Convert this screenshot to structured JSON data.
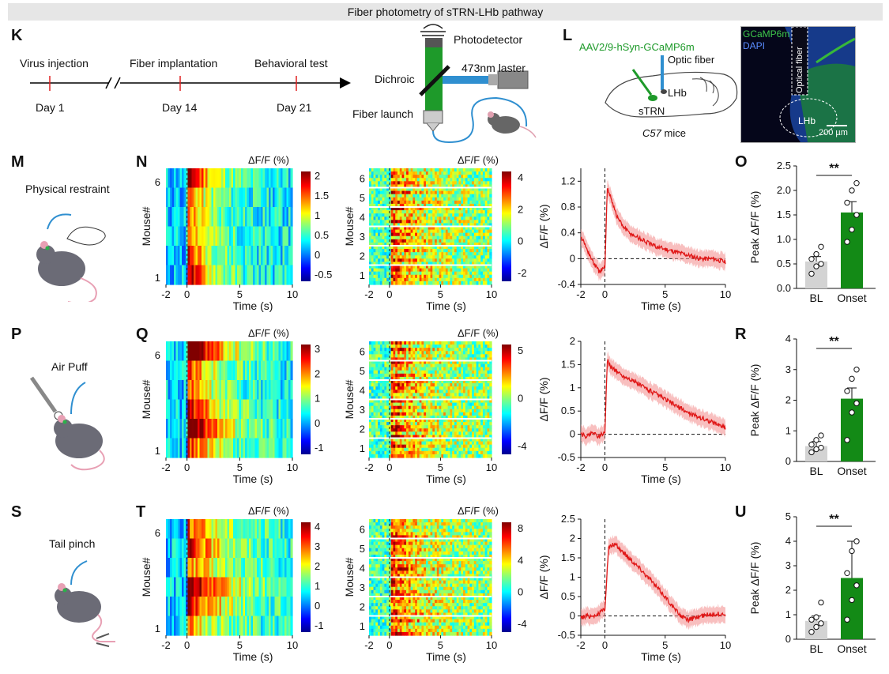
{
  "figure_title": "Fiber photometry of sTRN-LHb pathway",
  "panel_letters": {
    "K": "K",
    "L": "L",
    "M": "M",
    "N": "N",
    "O": "O",
    "P": "P",
    "Q": "Q",
    "R": "R",
    "S": "S",
    "T": "T",
    "U": "U"
  },
  "timeline": {
    "events": [
      {
        "label": "Virus injection",
        "day": "Day 1"
      },
      {
        "label": "Fiber implantation",
        "day": "Day 14"
      },
      {
        "label": "Behavioral test",
        "day": "Day 21"
      }
    ]
  },
  "setup": {
    "photodetector": "Photodetector",
    "laser": "473nm laster",
    "dichroic": "Dichroic",
    "fiber_launch": "Fiber launch"
  },
  "brain": {
    "virus": "AAV2/9-hSyn-GCaMP6m",
    "optic_fiber": "Optic fiber",
    "strn": "sTRN",
    "lhb": "LHb",
    "mouse_strain": "C57",
    "mouse_suffix": "mice"
  },
  "micrograph": {
    "gcamp": "GCaMP6m",
    "dapi": "DAPI",
    "optical_fiber": "Optical fiber",
    "lhb": "LHb",
    "scale": "200 µm"
  },
  "common": {
    "dff_label": "ΔF/F (%)",
    "mouse_label": "Mouse#",
    "time_label": "Time (s)",
    "bar_ylabel": "Peak ΔF/F (%)",
    "sig": "**",
    "x_ticks": [
      "-2",
      "0",
      "5",
      "10"
    ]
  },
  "rows": [
    {
      "stim": "Physical restraint",
      "heat_letter": "N",
      "bar_letter": "O",
      "hm_ticks": [
        "2",
        "1.5",
        "1",
        "0.5",
        "0",
        "-0.5"
      ],
      "hm2_ticks": [
        "4",
        "2",
        "0",
        "-2"
      ],
      "mouse_ticks": [
        "6",
        "1"
      ],
      "mouse_ticks2": [
        "6",
        "5",
        "4",
        "3",
        "2",
        "1"
      ],
      "trace_yticks": [
        "1.2",
        "0.8",
        "0.4",
        "0",
        "-0.4"
      ],
      "bar_yticks": [
        "2.5",
        "2.0",
        "1.5",
        "1.0",
        "0.5",
        "0.0"
      ]
    },
    {
      "stim": "Air Puff",
      "heat_letter": "Q",
      "bar_letter": "R",
      "hm_ticks": [
        "3",
        "2",
        "1",
        "0",
        "-1"
      ],
      "hm2_ticks": [
        "5",
        "0",
        "-4"
      ],
      "mouse_ticks": [
        "6",
        "1"
      ],
      "mouse_ticks2": [
        "6",
        "5",
        "4",
        "3",
        "2",
        "1"
      ],
      "trace_yticks": [
        "2",
        "1.5",
        "1",
        "0.5",
        "0",
        "-0.5"
      ],
      "bar_yticks": [
        "4",
        "3",
        "2",
        "1",
        "0"
      ]
    },
    {
      "stim": "Tail pinch",
      "heat_letter": "T",
      "bar_letter": "U",
      "hm_ticks": [
        "4",
        "3",
        "2",
        "1",
        "0",
        "-1"
      ],
      "hm2_ticks": [
        "8",
        "4",
        "0",
        "-4"
      ],
      "mouse_ticks": [
        "6",
        "1"
      ],
      "mouse_ticks2": [
        "6",
        "5",
        "4",
        "3",
        "2",
        "1"
      ],
      "trace_yticks": [
        "2.5",
        "2",
        "1.5",
        "1",
        "0.5",
        "0",
        "-0.5"
      ],
      "bar_yticks": [
        "5",
        "4",
        "3",
        "2",
        "1",
        "0"
      ]
    }
  ],
  "chart_data": [
    {
      "type": "bar",
      "panel": "O",
      "title": "Physical restraint",
      "categories": [
        "BL",
        "Onset"
      ],
      "values": [
        0.55,
        1.55
      ],
      "errors": [
        0.1,
        0.22
      ],
      "points": [
        [
          0.3,
          0.45,
          0.5,
          0.6,
          0.7,
          0.85
        ],
        [
          0.95,
          1.2,
          1.5,
          1.75,
          2.0,
          2.15
        ]
      ],
      "colors": [
        "#d3d3d3",
        "#138a16"
      ],
      "ylabel": "Peak ΔF/F (%)",
      "ylim": [
        0,
        2.5
      ],
      "significance": "**"
    },
    {
      "type": "bar",
      "panel": "R",
      "title": "Air Puff",
      "categories": [
        "BL",
        "Onset"
      ],
      "values": [
        0.5,
        2.05
      ],
      "errors": [
        0.15,
        0.35
      ],
      "points": [
        [
          0.3,
          0.4,
          0.45,
          0.55,
          0.7,
          0.85
        ],
        [
          0.7,
          1.6,
          1.9,
          2.3,
          2.7,
          3.0
        ]
      ],
      "colors": [
        "#d3d3d3",
        "#138a16"
      ],
      "ylabel": "Peak ΔF/F (%)",
      "ylim": [
        0,
        4
      ],
      "significance": "**"
    },
    {
      "type": "bar",
      "panel": "U",
      "title": "Tail pinch",
      "categories": [
        "BL",
        "Onset"
      ],
      "values": [
        0.75,
        2.5
      ],
      "errors": [
        0.2,
        1.5
      ],
      "points": [
        [
          0.3,
          0.5,
          0.65,
          0.8,
          0.9,
          1.5
        ],
        [
          0.8,
          1.6,
          2.2,
          2.7,
          3.6,
          4.0
        ]
      ],
      "colors": [
        "#d3d3d3",
        "#138a16"
      ],
      "ylabel": "Peak ΔF/F (%)",
      "ylim": [
        0,
        5
      ],
      "significance": "**"
    },
    {
      "type": "line",
      "panel": "N-trace",
      "xlabel": "Time (s)",
      "ylabel": "ΔF/F (%)",
      "xlim": [
        -2,
        10
      ],
      "ylim": [
        -0.4,
        1.4
      ],
      "x": [
        -2,
        -1.5,
        -1,
        -0.5,
        0,
        0.2,
        0.5,
        1,
        1.5,
        2,
        3,
        4,
        5,
        6,
        7,
        8,
        9,
        10
      ],
      "y": [
        0.35,
        0.15,
        -0.05,
        -0.2,
        -0.15,
        1.1,
        0.95,
        0.65,
        0.5,
        0.4,
        0.3,
        0.2,
        0.15,
        0.1,
        0.05,
        0.0,
        0.0,
        -0.05
      ]
    },
    {
      "type": "line",
      "panel": "Q-trace",
      "xlabel": "Time (s)",
      "ylabel": "ΔF/F (%)",
      "xlim": [
        -2,
        10
      ],
      "ylim": [
        -0.5,
        2
      ],
      "x": [
        -2,
        -1.5,
        -1,
        -0.5,
        0,
        0.2,
        0.5,
        1,
        1.5,
        2,
        3,
        4,
        5,
        6,
        7,
        8,
        9,
        10
      ],
      "y": [
        0.0,
        -0.05,
        0.05,
        -0.05,
        0.05,
        1.6,
        1.45,
        1.35,
        1.25,
        1.2,
        1.05,
        0.9,
        0.75,
        0.6,
        0.45,
        0.35,
        0.25,
        0.15
      ]
    },
    {
      "type": "line",
      "panel": "T-trace",
      "xlabel": "Time (s)",
      "ylabel": "ΔF/F (%)",
      "xlim": [
        -2,
        10
      ],
      "ylim": [
        -0.5,
        2.5
      ],
      "x": [
        -2,
        -1.5,
        -1,
        -0.5,
        0,
        0.3,
        0.7,
        1,
        1.5,
        2,
        3,
        4,
        5,
        6,
        6.5,
        7,
        8,
        9,
        10
      ],
      "y": [
        -0.05,
        0.0,
        0.0,
        0.05,
        0.2,
        1.75,
        1.85,
        1.8,
        1.65,
        1.5,
        1.2,
        0.85,
        0.5,
        0.1,
        -0.05,
        -0.1,
        0.0,
        0.05,
        0.05
      ]
    }
  ]
}
